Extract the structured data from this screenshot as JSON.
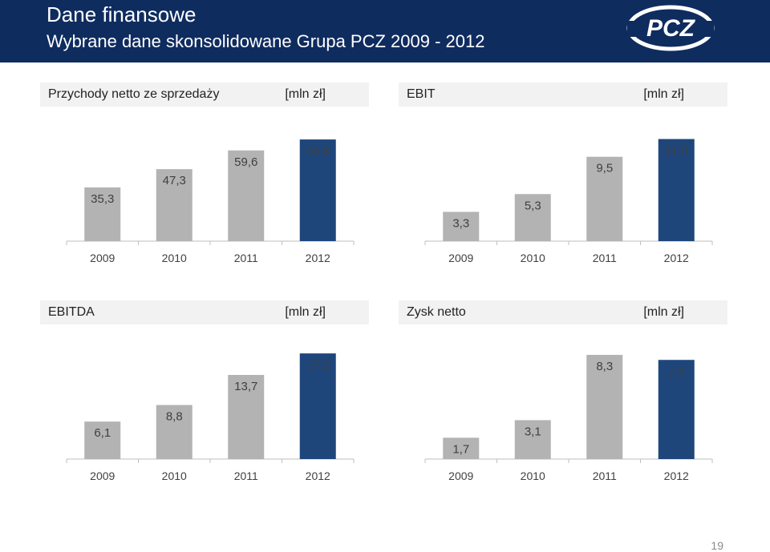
{
  "header": {
    "title": "Dane finansowe",
    "subtitle": "Wybrane dane skonsolidowane Grupa PCZ 2009 - 2012",
    "logo_text": "PCZ"
  },
  "colors": {
    "header_bg": "#0f2c5f",
    "bar_gray": "#b3b3b3",
    "bar_highlight": "#1f467b",
    "panel_bg": "#f2f2f2"
  },
  "panels": [
    {
      "name": "Przychody netto ze sprzedaży",
      "unit": "[mln zł]"
    },
    {
      "name": "EBIT",
      "unit": "[mln zł]"
    },
    {
      "name": "EBITDA",
      "unit": "[mln zł]"
    },
    {
      "name": "Zysk netto",
      "unit": "[mln zł]"
    }
  ],
  "chart_data": [
    {
      "type": "bar",
      "title": "Przychody netto ze sprzedaży",
      "unit": "[mln zł]",
      "categories": [
        "2009",
        "2010",
        "2011",
        "2012"
      ],
      "values": [
        35.3,
        47.3,
        59.6,
        66.8
      ],
      "labels": [
        "35,3",
        "47,3",
        "59,6",
        "66,8"
      ],
      "highlight_index": 3,
      "ylim": [
        0,
        70
      ]
    },
    {
      "type": "bar",
      "title": "EBIT",
      "unit": "[mln zł]",
      "categories": [
        "2009",
        "2010",
        "2011",
        "2012"
      ],
      "values": [
        3.3,
        5.3,
        9.5,
        11.5
      ],
      "labels": [
        "3,3",
        "5,3",
        "9,5",
        "11,5"
      ],
      "highlight_index": 3,
      "ylim": [
        0,
        12
      ]
    },
    {
      "type": "bar",
      "title": "EBITDA",
      "unit": "[mln zł]",
      "categories": [
        "2009",
        "2010",
        "2011",
        "2012"
      ],
      "values": [
        6.1,
        8.8,
        13.7,
        17.2
      ],
      "labels": [
        "6,1",
        "8,8",
        "13,7",
        "17,2"
      ],
      "highlight_index": 3,
      "ylim": [
        0,
        18
      ]
    },
    {
      "type": "bar",
      "title": "Zysk netto",
      "unit": "[mln zł]",
      "categories": [
        "2009",
        "2010",
        "2011",
        "2012"
      ],
      "values": [
        1.7,
        3.1,
        8.3,
        7.9
      ],
      "labels": [
        "1,7",
        "3,1",
        "8,3",
        "7,9"
      ],
      "highlight_index": 3,
      "ylim": [
        0,
        9
      ]
    }
  ],
  "footer": {
    "page_number": "19"
  }
}
